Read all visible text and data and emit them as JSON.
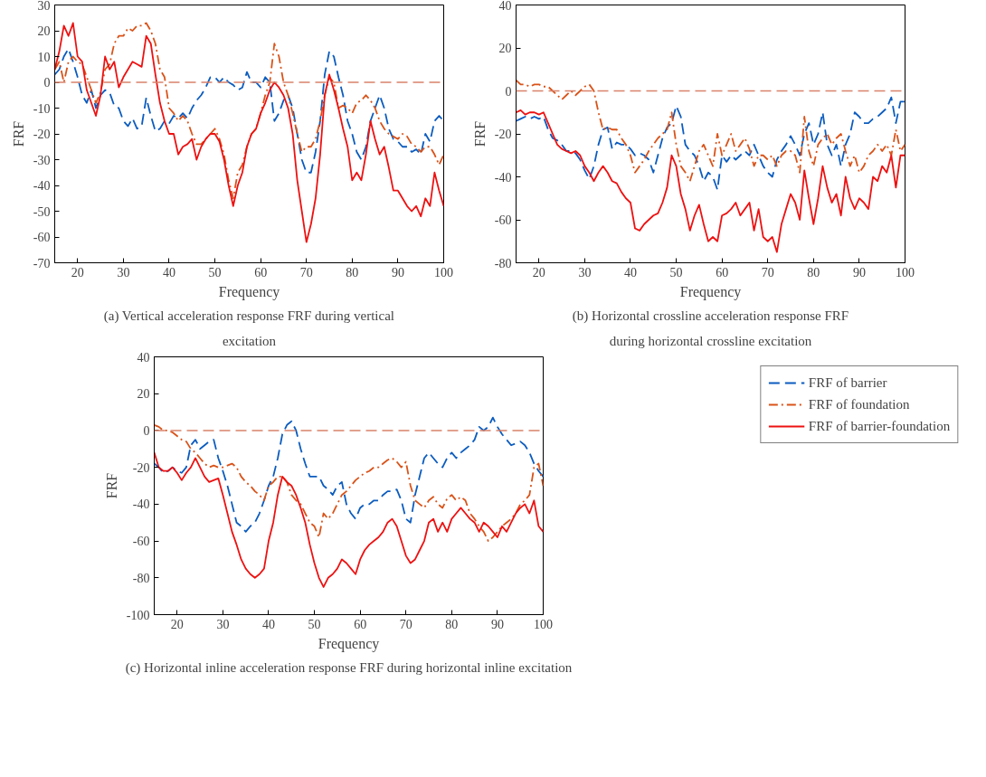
{
  "chart_data": [
    {
      "type": "line",
      "title": "(a) Vertical acceleration response FRF during vertical excitation",
      "xlabel": "Frequency",
      "ylabel": "FRF",
      "x": [
        15,
        16,
        17,
        18,
        19,
        20,
        21,
        22,
        23,
        24,
        25,
        26,
        27,
        28,
        29,
        30,
        31,
        32,
        33,
        34,
        35,
        36,
        37,
        38,
        39,
        40,
        41,
        42,
        43,
        44,
        45,
        46,
        47,
        48,
        49,
        50,
        51,
        52,
        53,
        54,
        55,
        56,
        57,
        58,
        59,
        60,
        61,
        62,
        63,
        64,
        65,
        66,
        67,
        68,
        69,
        70,
        71,
        72,
        73,
        74,
        75,
        76,
        77,
        78,
        79,
        80,
        81,
        82,
        83,
        84,
        85,
        86,
        87,
        88,
        89,
        90,
        91,
        92,
        93,
        94,
        95,
        96,
        97,
        98,
        99,
        100
      ],
      "xlim": [
        15,
        100
      ],
      "xticks": [
        20,
        30,
        40,
        50,
        60,
        70,
        80,
        90,
        100
      ],
      "ylim": [
        -70,
        30
      ],
      "yticks": [
        -70,
        -60,
        -50,
        -40,
        -30,
        -20,
        -10,
        0,
        10,
        20,
        30
      ],
      "grid": false,
      "legend": false,
      "ref_lines": [
        {
          "axis": "y",
          "value": 0,
          "color": "#d9826b",
          "line_style": "dashed"
        }
      ],
      "series": [
        {
          "color": "#0b5cbf",
          "line_style": "dashed",
          "values": [
            3,
            5,
            10,
            13,
            8,
            2,
            -5,
            -8,
            -3,
            -10,
            -5,
            -3,
            -4,
            -9,
            -10,
            -15,
            -17,
            -14,
            -18,
            -17,
            -6,
            -13,
            -19,
            -18,
            -15,
            -16,
            -13,
            -14,
            -12,
            -14,
            -10,
            -7,
            -5,
            -2,
            2,
            2,
            0,
            2,
            0,
            -1,
            -3,
            -2,
            4,
            0,
            0,
            -2,
            2,
            0,
            -15,
            -12,
            -7,
            -5,
            -10,
            -20,
            -30,
            -35,
            -35,
            -27,
            -15,
            3,
            12,
            10,
            2,
            -5,
            -15,
            -20,
            -27,
            -30,
            -25,
            -15,
            -10,
            -5,
            -10,
            -18,
            -22,
            -23,
            -25,
            -25,
            -27,
            -26,
            -28,
            -20,
            -23,
            -15,
            -13,
            -15
          ]
        },
        {
          "color": "#d95319",
          "line_style": "dashdot",
          "values": [
            5,
            8,
            0,
            8,
            10,
            8,
            7,
            2,
            -3,
            -8,
            -4,
            5,
            7,
            15,
            18,
            18,
            21,
            20,
            22,
            22,
            23,
            20,
            15,
            5,
            2,
            -10,
            -12,
            -15,
            -13,
            -15,
            -20,
            -24,
            -24,
            -22,
            -20,
            -18,
            -22,
            -28,
            -38,
            -45,
            -35,
            -32,
            -25,
            -20,
            -18,
            -12,
            -5,
            0,
            15,
            10,
            0,
            -5,
            -12,
            -20,
            -27,
            -25,
            -25,
            -22,
            -15,
            -5,
            2,
            0,
            -10,
            -9,
            -10,
            -12,
            -8,
            -7,
            -5,
            -7,
            -10,
            -15,
            -18,
            -20,
            -21,
            -22,
            -20,
            -21,
            -24,
            -25,
            -27,
            -25,
            -25,
            -28,
            -32,
            -28
          ]
        },
        {
          "color": "#ee1111",
          "line_style": "solid",
          "values": [
            5,
            12,
            22,
            18,
            23,
            10,
            8,
            -3,
            -8,
            -13,
            -5,
            10,
            5,
            8,
            -2,
            2,
            5,
            8,
            7,
            6,
            18,
            15,
            3,
            -8,
            -15,
            -20,
            -20,
            -28,
            -25,
            -24,
            -22,
            -30,
            -25,
            -22,
            -20,
            -20,
            -23,
            -30,
            -40,
            -48,
            -40,
            -35,
            -25,
            -20,
            -18,
            -12,
            -8,
            -3,
            0,
            -2,
            -5,
            -10,
            -20,
            -38,
            -50,
            -62,
            -55,
            -45,
            -28,
            -5,
            3,
            -3,
            -10,
            -18,
            -25,
            -38,
            -35,
            -38,
            -28,
            -15,
            -22,
            -28,
            -25,
            -33,
            -42,
            -42,
            -45,
            -48,
            -50,
            -48,
            -52,
            -45,
            -48,
            -35,
            -42,
            -48
          ]
        }
      ]
    },
    {
      "type": "line",
      "title": "(b) Horizontal crossline acceleration response FRF during horizontal crossline excitation",
      "xlabel": "Frequency",
      "ylabel": "FRF",
      "x": [
        15,
        16,
        17,
        18,
        19,
        20,
        21,
        22,
        23,
        24,
        25,
        26,
        27,
        28,
        29,
        30,
        31,
        32,
        33,
        34,
        35,
        36,
        37,
        38,
        39,
        40,
        41,
        42,
        43,
        44,
        45,
        46,
        47,
        48,
        49,
        50,
        51,
        52,
        53,
        54,
        55,
        56,
        57,
        58,
        59,
        60,
        61,
        62,
        63,
        64,
        65,
        66,
        67,
        68,
        69,
        70,
        71,
        72,
        73,
        74,
        75,
        76,
        77,
        78,
        79,
        80,
        81,
        82,
        83,
        84,
        85,
        86,
        87,
        88,
        89,
        90,
        91,
        92,
        93,
        94,
        95,
        96,
        97,
        98,
        99,
        100
      ],
      "xlim": [
        15,
        100
      ],
      "xticks": [
        20,
        30,
        40,
        50,
        60,
        70,
        80,
        90,
        100
      ],
      "ylim": [
        -80,
        40
      ],
      "yticks": [
        -80,
        -60,
        -40,
        -20,
        0,
        20,
        40
      ],
      "grid": false,
      "legend": false,
      "ref_lines": [
        {
          "axis": "y",
          "value": 0,
          "color": "#d9826b",
          "line_style": "dashed"
        }
      ],
      "series": [
        {
          "color": "#0b5cbf",
          "line_style": "dashed",
          "values": [
            -14,
            -13,
            -12,
            -13,
            -12,
            -13,
            -12,
            -18,
            -22,
            -23,
            -25,
            -28,
            -28,
            -29,
            -32,
            -37,
            -41,
            -35,
            -25,
            -18,
            -17,
            -27,
            -24,
            -25,
            -25,
            -27,
            -30,
            -29,
            -30,
            -32,
            -38,
            -30,
            -22,
            -17,
            -15,
            -7,
            -12,
            -25,
            -28,
            -30,
            -35,
            -42,
            -38,
            -40,
            -46,
            -30,
            -33,
            -30,
            -32,
            -30,
            -28,
            -30,
            -25,
            -30,
            -35,
            -38,
            -40,
            -32,
            -28,
            -25,
            -21,
            -25,
            -30,
            -20,
            -15,
            -25,
            -20,
            -10,
            -25,
            -30,
            -25,
            -35,
            -25,
            -20,
            -10,
            -12,
            -15,
            -15,
            -13,
            -12,
            -10,
            -8,
            -3,
            -15,
            -5,
            -5
          ]
        },
        {
          "color": "#d95319",
          "line_style": "dashdot",
          "values": [
            5,
            3,
            3,
            2,
            3,
            3,
            2,
            2,
            0,
            -2,
            -4,
            -2,
            0,
            -2,
            0,
            2,
            3,
            0,
            -10,
            -18,
            -17,
            -18,
            -18,
            -22,
            -25,
            -30,
            -38,
            -35,
            -32,
            -28,
            -25,
            -22,
            -20,
            -18,
            -10,
            -25,
            -35,
            -38,
            -42,
            -35,
            -28,
            -25,
            -30,
            -35,
            -20,
            -30,
            -25,
            -20,
            -28,
            -25,
            -22,
            -27,
            -35,
            -30,
            -30,
            -32,
            -30,
            -35,
            -30,
            -28,
            -28,
            -30,
            -38,
            -12,
            -28,
            -35,
            -25,
            -22,
            -20,
            -25,
            -22,
            -20,
            -28,
            -35,
            -30,
            -38,
            -35,
            -30,
            -28,
            -25,
            -28,
            -25,
            -30,
            -18,
            -28,
            -25
          ]
        },
        {
          "color": "#ee1111",
          "line_style": "solid",
          "values": [
            -10,
            -9,
            -11,
            -10,
            -10,
            -11,
            -10,
            -15,
            -20,
            -25,
            -27,
            -28,
            -29,
            -28,
            -30,
            -35,
            -38,
            -42,
            -38,
            -35,
            -38,
            -42,
            -43,
            -47,
            -50,
            -52,
            -64,
            -65,
            -62,
            -60,
            -58,
            -57,
            -52,
            -45,
            -30,
            -35,
            -48,
            -55,
            -65,
            -58,
            -53,
            -62,
            -70,
            -68,
            -70,
            -58,
            -57,
            -55,
            -52,
            -58,
            -55,
            -52,
            -65,
            -55,
            -68,
            -70,
            -68,
            -75,
            -62,
            -55,
            -48,
            -52,
            -60,
            -37,
            -50,
            -62,
            -50,
            -35,
            -45,
            -52,
            -48,
            -58,
            -40,
            -50,
            -55,
            -50,
            -52,
            -55,
            -40,
            -42,
            -35,
            -38,
            -30,
            -45,
            -30,
            -30
          ]
        }
      ]
    },
    {
      "type": "line",
      "title": "(c) Horizontal inline acceleration response FRF during horizontal inline excitation",
      "xlabel": "Frequency",
      "ylabel": "FRF",
      "x": [
        15,
        16,
        17,
        18,
        19,
        20,
        21,
        22,
        23,
        24,
        25,
        26,
        27,
        28,
        29,
        30,
        31,
        32,
        33,
        34,
        35,
        36,
        37,
        38,
        39,
        40,
        41,
        42,
        43,
        44,
        45,
        46,
        47,
        48,
        49,
        50,
        51,
        52,
        53,
        54,
        55,
        56,
        57,
        58,
        59,
        60,
        61,
        62,
        63,
        64,
        65,
        66,
        67,
        68,
        69,
        70,
        71,
        72,
        73,
        74,
        75,
        76,
        77,
        78,
        79,
        80,
        81,
        82,
        83,
        84,
        85,
        86,
        87,
        88,
        89,
        90,
        91,
        92,
        93,
        94,
        95,
        96,
        97,
        98,
        99,
        100
      ],
      "xlim": [
        15,
        100
      ],
      "xticks": [
        20,
        30,
        40,
        50,
        60,
        70,
        80,
        90,
        100
      ],
      "ylim": [
        -100,
        40
      ],
      "yticks": [
        -100,
        -80,
        -60,
        -40,
        -20,
        0,
        20,
        40
      ],
      "grid": false,
      "legend": "right",
      "ref_lines": [
        {
          "axis": "y",
          "value": 0,
          "color": "#d9826b",
          "line_style": "dashed"
        }
      ],
      "series": [
        {
          "name": "FRF of barrier",
          "color": "#0b5cbf",
          "line_style": "dashed",
          "values": [
            -18,
            -20,
            -23,
            -22,
            -20,
            -22,
            -23,
            -20,
            -8,
            -5,
            -10,
            -8,
            -6,
            -5,
            -15,
            -22,
            -30,
            -40,
            -50,
            -52,
            -55,
            -52,
            -50,
            -45,
            -38,
            -30,
            -25,
            -15,
            -2,
            3,
            5,
            0,
            -10,
            -18,
            -25,
            -25,
            -25,
            -30,
            -32,
            -35,
            -30,
            -28,
            -40,
            -45,
            -48,
            -42,
            -40,
            -40,
            -38,
            -38,
            -35,
            -33,
            -33,
            -32,
            -38,
            -48,
            -50,
            -35,
            -25,
            -15,
            -12,
            -15,
            -18,
            -20,
            -15,
            -12,
            -15,
            -12,
            -10,
            -8,
            -5,
            2,
            0,
            2,
            7,
            2,
            -2,
            -5,
            -8,
            -7,
            -6,
            -8,
            -12,
            -18,
            -22,
            -25
          ]
        },
        {
          "name": "FRF of foundation",
          "color": "#d95319",
          "line_style": "dashdot",
          "values": [
            3,
            2,
            0,
            0,
            -1,
            -3,
            -5,
            -6,
            -10,
            -12,
            -15,
            -18,
            -20,
            -19,
            -20,
            -20,
            -19,
            -18,
            -20,
            -25,
            -28,
            -30,
            -33,
            -35,
            -38,
            -30,
            -28,
            -25,
            -25,
            -28,
            -35,
            -38,
            -40,
            -45,
            -50,
            -52,
            -58,
            -45,
            -48,
            -45,
            -40,
            -35,
            -33,
            -30,
            -27,
            -25,
            -23,
            -22,
            -20,
            -20,
            -18,
            -16,
            -15,
            -17,
            -20,
            -17,
            -30,
            -38,
            -40,
            -42,
            -38,
            -36,
            -40,
            -42,
            -37,
            -35,
            -38,
            -36,
            -38,
            -45,
            -48,
            -52,
            -55,
            -60,
            -58,
            -55,
            -52,
            -50,
            -48,
            -45,
            -40,
            -38,
            -35,
            -20,
            -18,
            -30
          ]
        },
        {
          "name": "FRF of barrier-foundation",
          "color": "#ee1111",
          "line_style": "solid",
          "values": [
            -12,
            -20,
            -22,
            -22,
            -20,
            -23,
            -27,
            -23,
            -20,
            -15,
            -20,
            -25,
            -28,
            -27,
            -26,
            -35,
            -45,
            -55,
            -62,
            -70,
            -75,
            -78,
            -80,
            -78,
            -75,
            -60,
            -50,
            -35,
            -25,
            -28,
            -30,
            -35,
            -42,
            -50,
            -62,
            -72,
            -80,
            -85,
            -80,
            -78,
            -75,
            -70,
            -72,
            -75,
            -78,
            -70,
            -65,
            -62,
            -60,
            -58,
            -55,
            -50,
            -48,
            -52,
            -60,
            -68,
            -72,
            -70,
            -65,
            -60,
            -50,
            -48,
            -55,
            -50,
            -55,
            -48,
            -45,
            -42,
            -45,
            -48,
            -50,
            -55,
            -50,
            -52,
            -55,
            -58,
            -52,
            -55,
            -50,
            -45,
            -42,
            -40,
            -45,
            -38,
            -52,
            -55
          ]
        }
      ]
    }
  ]
}
